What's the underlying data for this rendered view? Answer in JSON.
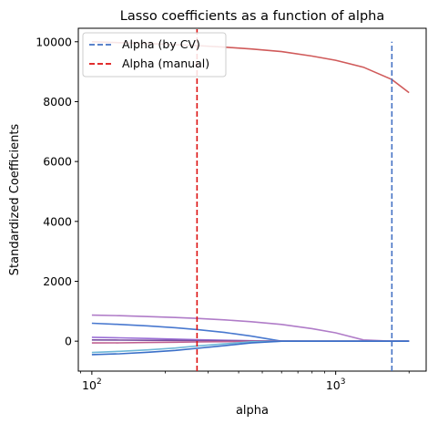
{
  "chart_data": {
    "type": "line",
    "title": "Lasso coefficients as a function of alpha",
    "xlabel": "alpha",
    "ylabel": "Standardized Coefficients",
    "xscale": "log",
    "xlim": [
      88,
      2350
    ],
    "ylim": [
      -1000,
      10450
    ],
    "grid": false,
    "legend_position": "top-left",
    "x_ticks": [
      {
        "value": 100,
        "base": "10",
        "exp": "2"
      },
      {
        "value": 1000,
        "base": "10",
        "exp": "3"
      }
    ],
    "y_ticks": [
      0,
      2000,
      4000,
      6000,
      8000,
      10000
    ],
    "x": [
      100,
      130,
      170,
      220,
      270,
      350,
      450,
      600,
      800,
      1000,
      1300,
      1700,
      2000
    ],
    "series": [
      {
        "color": "#d05a5a",
        "values": [
          10000,
          9970,
          9940,
          9900,
          9870,
          9820,
          9760,
          9670,
          9520,
          9380,
          9150,
          8740,
          8300
        ]
      },
      {
        "color": "#b07cc8",
        "values": [
          870,
          850,
          820,
          790,
          760,
          710,
          650,
          560,
          420,
          280,
          40,
          0,
          0
        ]
      },
      {
        "color": "#4878cf",
        "values": [
          600,
          560,
          510,
          450,
          390,
          290,
          170,
          0,
          0,
          0,
          0,
          0,
          0
        ]
      },
      {
        "color": "#9b6fd6",
        "values": [
          130,
          110,
          90,
          70,
          50,
          30,
          15,
          0,
          0,
          0,
          0,
          0,
          0
        ]
      },
      {
        "color": "#7a4fa0",
        "values": [
          40,
          35,
          30,
          25,
          20,
          15,
          10,
          5,
          0,
          0,
          0,
          0,
          0
        ]
      },
      {
        "color": "#c06090",
        "values": [
          -60,
          -55,
          -45,
          -35,
          -25,
          -15,
          -5,
          0,
          0,
          0,
          0,
          0,
          0
        ]
      },
      {
        "color": "#6fb8d8",
        "values": [
          -380,
          -340,
          -290,
          -230,
          -160,
          -90,
          -20,
          0,
          0,
          0,
          0,
          0,
          0
        ]
      },
      {
        "color": "#3a6fc8",
        "values": [
          -450,
          -420,
          -370,
          -310,
          -240,
          -150,
          -60,
          0,
          0,
          0,
          0,
          0,
          0
        ]
      }
    ],
    "vlines": [
      {
        "label": "Alpha (by CV)",
        "x": 1700,
        "color": "#4472c4",
        "ymin": -1000,
        "ymax": 10000
      },
      {
        "label": "Alpha (manual)",
        "x": 270,
        "color": "#dd1111",
        "ymin": -1000,
        "ymax": 10450
      }
    ]
  }
}
